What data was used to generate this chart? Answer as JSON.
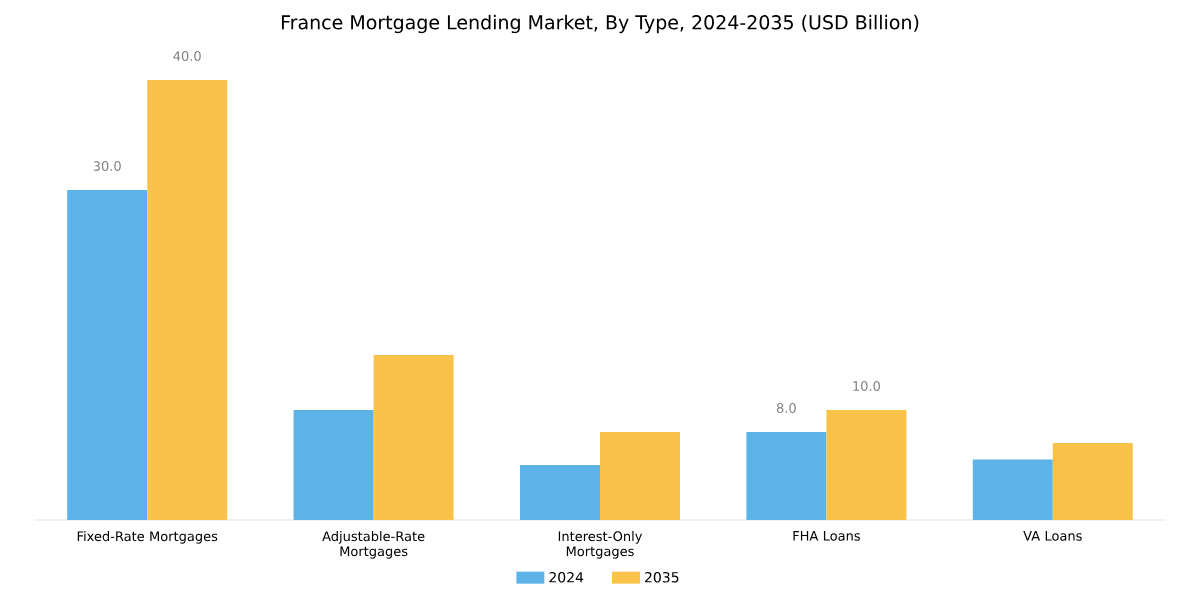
{
  "chart_data": {
    "type": "bar",
    "title": "France Mortgage Lending Market, By Type, 2024-2035 (USD Billion)",
    "categories": [
      "Fixed-Rate Mortgages",
      "Adjustable-Rate Mortgages",
      "Interest-Only Mortgages",
      "FHA Loans",
      "VA Loans"
    ],
    "series": [
      {
        "name": "2024",
        "color": "#5db3e8",
        "values": [
          30,
          10,
          5,
          8,
          5.5
        ],
        "value_labels": [
          "30.0",
          null,
          null,
          "8.0",
          null
        ]
      },
      {
        "name": "2035",
        "color": "#f9c34a",
        "values": [
          40,
          15,
          8,
          10,
          7
        ],
        "value_labels": [
          "40.0",
          null,
          null,
          "10.0",
          null
        ]
      }
    ],
    "legend": "bottom"
  }
}
